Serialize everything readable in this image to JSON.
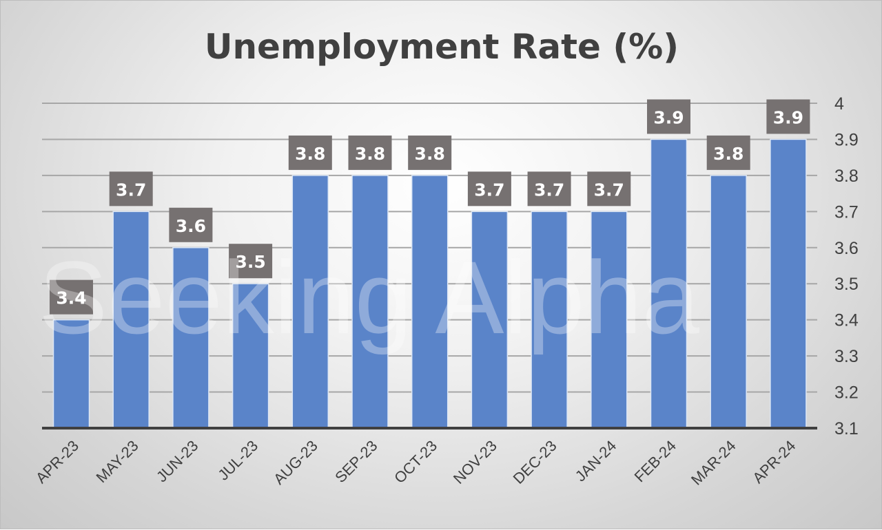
{
  "chart_data": {
    "type": "bar",
    "title": "Unemployment Rate (%)",
    "categories": [
      "APR-23",
      "MAY-23",
      "JUN-23",
      "JUL-23",
      "AUG-23",
      "SEP-23",
      "OCT-23",
      "NOV-23",
      "DEC-23",
      "JAN-24",
      "FEB-24",
      "MAR-24",
      "APR-24"
    ],
    "values": [
      3.4,
      3.7,
      3.6,
      3.5,
      3.8,
      3.8,
      3.8,
      3.7,
      3.7,
      3.7,
      3.9,
      3.8,
      3.9
    ],
    "data_labels": [
      "3.4",
      "3.7",
      "3.6",
      "3.5",
      "3.8",
      "3.8",
      "3.8",
      "3.7",
      "3.7",
      "3.7",
      "3.9",
      "3.8",
      "3.9"
    ],
    "ylim": [
      3.1,
      4
    ],
    "yticks": [
      "3.1",
      "3.2",
      "3.3",
      "3.4",
      "3.5",
      "3.6",
      "3.7",
      "3.8",
      "3.9",
      "4"
    ],
    "y_axis_position": "right",
    "xlabel": "",
    "ylabel": "",
    "grid": true,
    "legend": "none",
    "colors": {
      "bar": "#5a84c9",
      "label_box": "#767171",
      "label_text": "#ffffff",
      "grid": "#a6a6a6",
      "axis": "#404040"
    }
  },
  "watermark": "Seeking Alpha"
}
